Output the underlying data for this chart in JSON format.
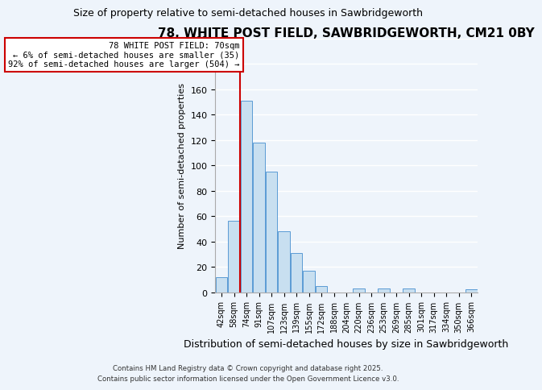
{
  "title": "78, WHITE POST FIELD, SAWBRIDGEWORTH, CM21 0BY",
  "subtitle": "Size of property relative to semi-detached houses in Sawbridgeworth",
  "xlabel": "Distribution of semi-detached houses by size in Sawbridgeworth",
  "ylabel": "Number of semi-detached properties",
  "bin_labels": [
    "42sqm",
    "58sqm",
    "74sqm",
    "91sqm",
    "107sqm",
    "123sqm",
    "139sqm",
    "155sqm",
    "172sqm",
    "188sqm",
    "204sqm",
    "220sqm",
    "236sqm",
    "253sqm",
    "269sqm",
    "285sqm",
    "301sqm",
    "317sqm",
    "334sqm",
    "350sqm",
    "366sqm"
  ],
  "bar_heights": [
    12,
    56,
    151,
    118,
    95,
    48,
    31,
    17,
    5,
    0,
    0,
    3,
    0,
    3,
    0,
    3,
    0,
    0,
    0,
    0,
    2
  ],
  "bar_color": "#c8dff0",
  "bar_edge_color": "#5b9bd5",
  "ylim": [
    0,
    200
  ],
  "yticks": [
    0,
    20,
    40,
    60,
    80,
    100,
    120,
    140,
    160,
    180,
    200
  ],
  "vline_color": "#cc0000",
  "vline_x_index": 1.5,
  "annotation_title": "78 WHITE POST FIELD: 70sqm",
  "annotation_line1": "← 6% of semi-detached houses are smaller (35)",
  "annotation_line2": "92% of semi-detached houses are larger (504) →",
  "annotation_box_color": "#ffffff",
  "annotation_border_color": "#cc0000",
  "footnote1": "Contains HM Land Registry data © Crown copyright and database right 2025.",
  "footnote2": "Contains public sector information licensed under the Open Government Licence v3.0.",
  "background_color": "#eef4fb",
  "grid_color": "#ffffff",
  "title_fontsize": 11,
  "subtitle_fontsize": 9,
  "ylabel_fontsize": 8,
  "xlabel_fontsize": 9
}
